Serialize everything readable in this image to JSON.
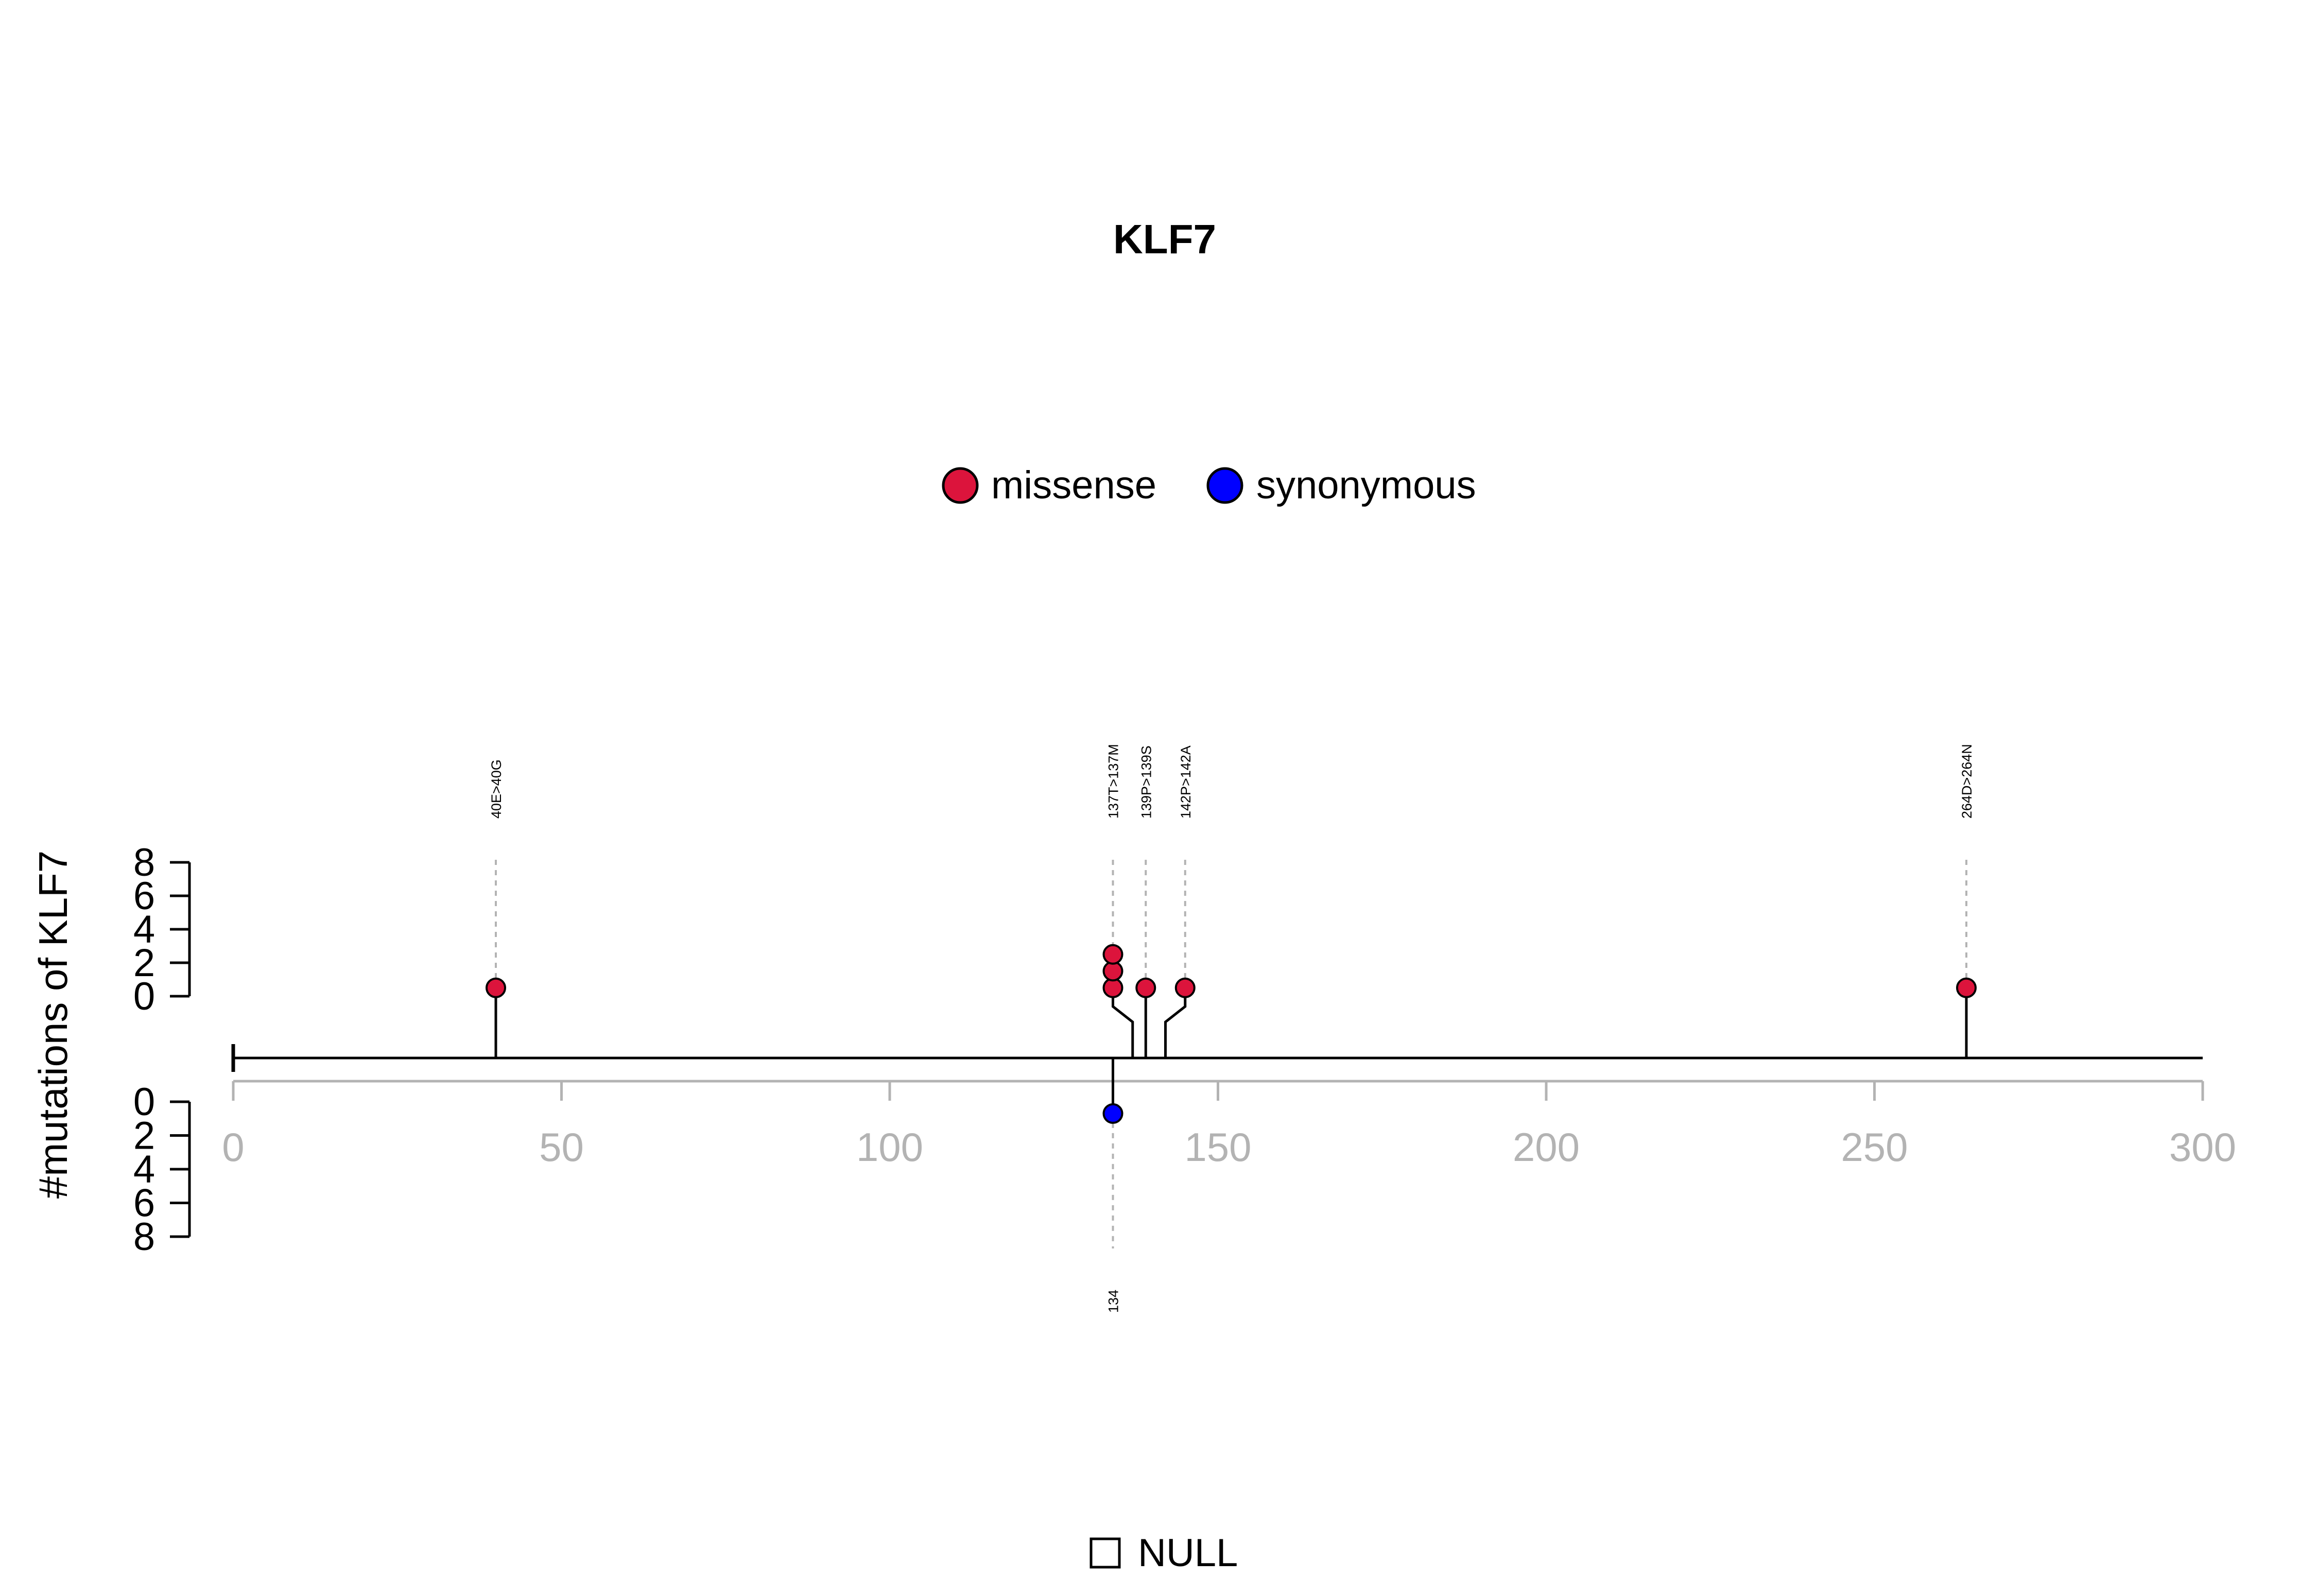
{
  "chart_data": {
    "type": "lollipop",
    "title": "KLF7",
    "ylabel": "#mutations of KLF7",
    "xlim": [
      0,
      300
    ],
    "x_ticks": [
      0,
      50,
      100,
      150,
      200,
      250,
      300
    ],
    "y_ticks_top": [
      0,
      2,
      4,
      6,
      8
    ],
    "y_ticks_bottom": [
      0,
      2,
      4,
      6,
      8
    ],
    "legend": {
      "position": "top-center",
      "items": [
        {
          "label": "missense",
          "color": "#DC143C"
        },
        {
          "label": "synonymous",
          "color": "#0000FF"
        }
      ]
    },
    "domain_legend": {
      "label": "NULL",
      "fill": "#ffffff"
    },
    "mutations_top": [
      {
        "position": 40,
        "label": "40E>40G",
        "count": 1,
        "type": "missense",
        "stack_x": 40
      },
      {
        "position": 137,
        "label": "137T>137M",
        "count": 3,
        "type": "missense",
        "stack_x": 134
      },
      {
        "position": 139,
        "label": "139P>139S",
        "count": 1,
        "type": "missense",
        "stack_x": 139
      },
      {
        "position": 142,
        "label": "142P>142A",
        "count": 1,
        "type": "missense",
        "stack_x": 145
      },
      {
        "position": 264,
        "label": "264D>264N",
        "count": 1,
        "type": "missense",
        "stack_x": 264
      }
    ],
    "mutations_bottom": [
      {
        "position": 134,
        "label": "134",
        "count": 1,
        "type": "synonymous",
        "stack_x": 134
      }
    ],
    "colors": {
      "missense": "#DC143C",
      "synonymous": "#0000FF"
    }
  }
}
